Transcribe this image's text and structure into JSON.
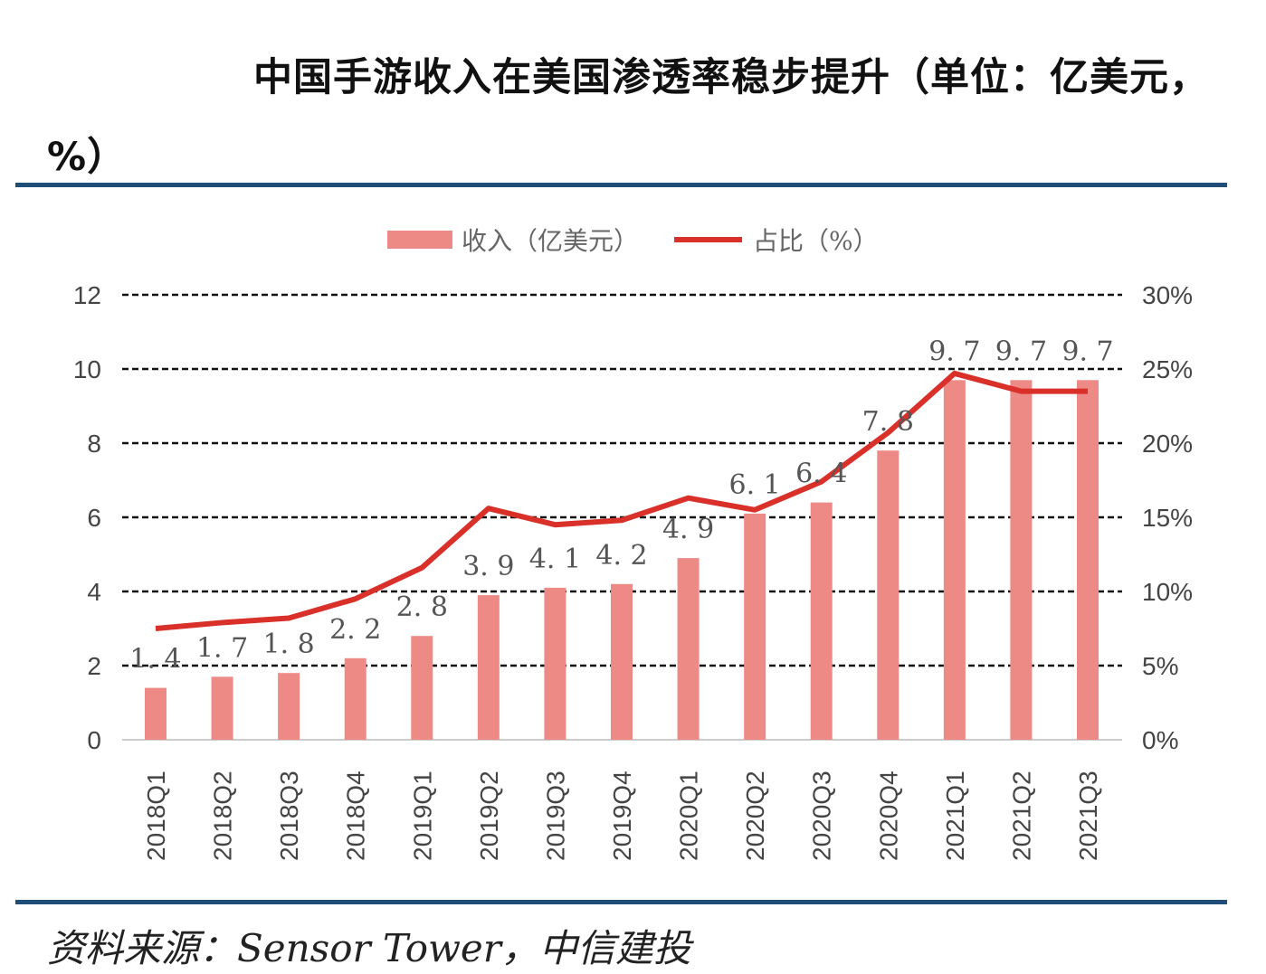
{
  "title": "中国手游收入在美国渗透率稳步提升（单位：亿美元，%）",
  "source": "资料来源：Sensor Tower，中信建投",
  "colors": {
    "bar": "#ee8a86",
    "line": "#d9302a",
    "rule": "#1f4e79"
  },
  "chart_data": {
    "type": "bar+line",
    "categories": [
      "2018Q1",
      "2018Q2",
      "2018Q3",
      "2018Q4",
      "2019Q1",
      "2019Q2",
      "2019Q3",
      "2019Q4",
      "2020Q1",
      "2020Q2",
      "2020Q3",
      "2020Q4",
      "2021Q1",
      "2021Q2",
      "2021Q3"
    ],
    "series": [
      {
        "name": "收入（亿美元）",
        "type": "bar",
        "axis": "left",
        "values": [
          1.4,
          1.7,
          1.8,
          2.2,
          2.8,
          3.9,
          4.1,
          4.2,
          4.9,
          6.1,
          6.4,
          7.8,
          9.7,
          9.7,
          9.7
        ],
        "labels": [
          "1.4",
          "1.7",
          "1.8",
          "2.2",
          "2.8",
          "3.9",
          "4.1",
          "4.2",
          "4.9",
          "6.1",
          "6.4",
          "7.8",
          "9.7",
          "9.7",
          "9.7"
        ]
      },
      {
        "name": "占比（%）",
        "type": "line",
        "axis": "right",
        "values": [
          7.5,
          7.9,
          8.2,
          9.5,
          11.6,
          15.6,
          14.5,
          14.8,
          16.3,
          15.5,
          17.4,
          20.7,
          24.7,
          23.5,
          23.5
        ]
      }
    ],
    "ylim_left": [
      0,
      12
    ],
    "yticks_left": [
      "0",
      "2",
      "4",
      "6",
      "8",
      "10",
      "12"
    ],
    "ylim_right": [
      0,
      30
    ],
    "yticks_right": [
      "0%",
      "5%",
      "10%",
      "15%",
      "20%",
      "25%",
      "30%"
    ],
    "grid": "dashed horizontal",
    "legend": "top"
  }
}
